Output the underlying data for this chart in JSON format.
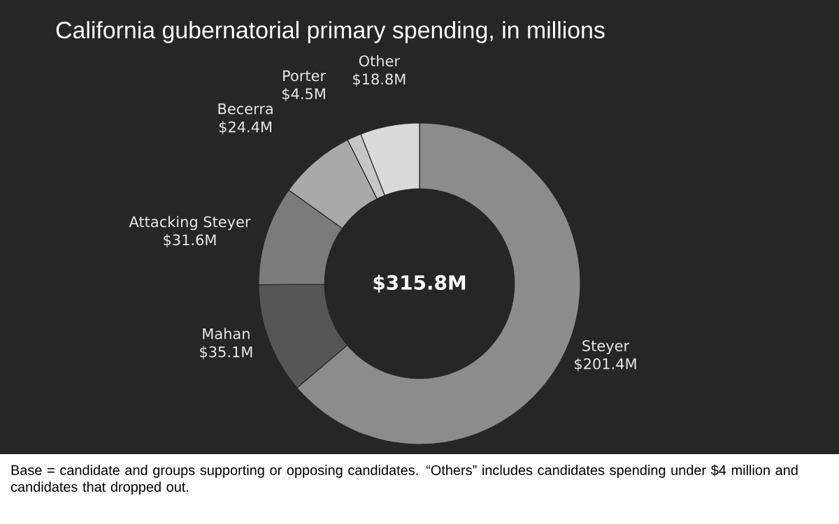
{
  "chart_data": {
    "type": "donut",
    "title": "California gubernatorial primary spending, in millions",
    "categories": [
      "Steyer",
      "Mahan",
      "Attacking Steyer",
      "Becerra",
      "Porter",
      "Other"
    ],
    "values": [
      201.4,
      35.1,
      31.6,
      24.4,
      4.5,
      18.8
    ],
    "colors": [
      "#8c8c8c",
      "#565656",
      "#7b7b7b",
      "#a9a9a9",
      "#c6c6c6",
      "#dadada"
    ],
    "value_labels": [
      "$201.4M",
      "$35.1M",
      "$31.6M",
      "$24.4M",
      "$4.5M",
      "$18.8M"
    ],
    "annotations": [
      "$315.8M",
      "Base = candidate and groups supporting or opposing candidates. “Others” includes candidates spending under $4 million and candidates that dropped out."
    ]
  }
}
